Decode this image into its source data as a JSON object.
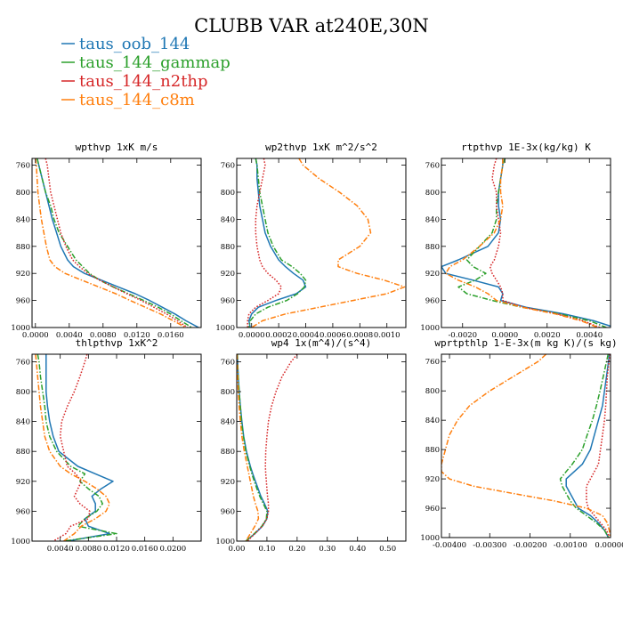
{
  "title": "CLUBB VAR at240E,30N",
  "legend": [
    {
      "name": "taus_oob_144",
      "color": "#1f77b4",
      "dash": "solid"
    },
    {
      "name": "taus_144_gammap",
      "color": "#2ca02c",
      "dash": "dashdot"
    },
    {
      "name": "taus_144_n2thp",
      "color": "#d62728",
      "dash": "dotted"
    },
    {
      "name": "taus_144_c8m",
      "color": "#ff7f0e",
      "dash": "dashdot"
    }
  ],
  "chart_data": [
    {
      "type": "line",
      "title": "wpthvp  1xK m/s",
      "xlim": [
        -0.0004,
        0.0196
      ],
      "ylim": [
        1000,
        750
      ],
      "xticks": [
        0.0,
        0.004,
        0.008,
        0.012,
        0.016
      ],
      "xtick_labels": [
        "0.0000",
        "0.0040",
        "0.0080",
        "0.0120",
        "0.0160"
      ],
      "yticks": [
        760,
        800,
        840,
        880,
        920,
        960,
        1000
      ],
      "y": [
        750,
        760,
        780,
        800,
        820,
        840,
        860,
        880,
        900,
        910,
        920,
        930,
        940,
        950,
        960,
        970,
        980,
        990,
        1000
      ],
      "series": [
        {
          "name": "taus_oob_144",
          "values": [
            0.0002,
            0.0004,
            0.0008,
            0.0012,
            0.0016,
            0.002,
            0.0025,
            0.003,
            0.0038,
            0.0045,
            0.0058,
            0.0078,
            0.0098,
            0.0118,
            0.0135,
            0.015,
            0.0165,
            0.0178,
            0.0193
          ]
        },
        {
          "name": "taus_144_gammap",
          "values": [
            0.0002,
            0.0004,
            0.0008,
            0.0012,
            0.0018,
            0.0022,
            0.0028,
            0.0038,
            0.0048,
            0.0056,
            0.0064,
            0.0076,
            0.0092,
            0.011,
            0.0128,
            0.0145,
            0.016,
            0.0172,
            0.0185
          ]
        },
        {
          "name": "taus_144_n2thp",
          "values": [
            0.0012,
            0.0014,
            0.0016,
            0.0018,
            0.0022,
            0.0026,
            0.003,
            0.0036,
            0.0044,
            0.0052,
            0.0062,
            0.0076,
            0.0092,
            0.0108,
            0.0125,
            0.014,
            0.0155,
            0.0168,
            0.018
          ]
        },
        {
          "name": "taus_144_c8m",
          "values": [
            0.0,
            0.0001,
            0.0002,
            0.0003,
            0.0005,
            0.0007,
            0.001,
            0.0013,
            0.0017,
            0.0023,
            0.0035,
            0.0055,
            0.0075,
            0.0095,
            0.0112,
            0.013,
            0.0148,
            0.0163,
            0.0178
          ]
        }
      ]
    },
    {
      "type": "line",
      "title": "wp2thvp  1xK m^2/s^2",
      "xlim": [
        -0.00011,
        0.00114
      ],
      "ylim": [
        1000,
        750
      ],
      "xticks": [
        0.0,
        0.0002,
        0.0004,
        0.0006,
        0.0008,
        0.001
      ],
      "xtick_labels": [
        "0.0000",
        "0.0002",
        "0.0004",
        "0.0006",
        "0.0008",
        "0.0010"
      ],
      "yticks": [
        760,
        800,
        840,
        880,
        920,
        960,
        1000
      ],
      "y": [
        750,
        760,
        780,
        800,
        820,
        840,
        860,
        880,
        900,
        910,
        920,
        930,
        940,
        950,
        960,
        970,
        980,
        990,
        1000
      ],
      "series": [
        {
          "name": "taus_oob_144",
          "values": [
            3e-05,
            4e-05,
            4e-05,
            5e-05,
            6e-05,
            8e-05,
            0.0001,
            0.00014,
            0.0002,
            0.00025,
            0.00031,
            0.00038,
            0.0004,
            0.00033,
            0.00018,
            5e-05,
            0.0,
            -2e-05,
            -1e-05
          ]
        },
        {
          "name": "taus_144_gammap",
          "values": [
            3e-05,
            4e-05,
            5e-05,
            6e-05,
            8e-05,
            0.0001,
            0.00012,
            0.00016,
            0.00022,
            0.0003,
            0.00036,
            0.0004,
            0.00039,
            0.00034,
            0.00026,
            0.00012,
            3e-05,
            -1e-05,
            -2e-05
          ]
        },
        {
          "name": "taus_144_n2thp",
          "values": [
            9e-05,
            0.0001,
            8e-05,
            6e-05,
            4e-05,
            3e-05,
            3e-05,
            4e-05,
            6e-05,
            8e-05,
            0.00012,
            0.00018,
            0.00022,
            0.0002,
            0.00012,
            3e-05,
            -2e-05,
            -3e-05,
            -3e-05
          ]
        },
        {
          "name": "taus_144_c8m",
          "values": [
            0.00035,
            0.00038,
            0.0005,
            0.00065,
            0.00078,
            0.00086,
            0.00088,
            0.0008,
            0.00064,
            0.00064,
            0.00078,
            0.00098,
            0.00113,
            0.001,
            0.00075,
            0.0005,
            0.00025,
            8e-05,
            0.0
          ]
        }
      ]
    },
    {
      "type": "line",
      "title": "rtpthvp  1E-3x(kg/kg) K",
      "xlim": [
        -0.003,
        0.005
      ],
      "ylim": [
        1000,
        750
      ],
      "xticks": [
        -0.002,
        0.0,
        0.002,
        0.004
      ],
      "xtick_labels": [
        "-0.0020",
        "0.0000",
        "0.0020",
        "0.0040"
      ],
      "yticks": [
        760,
        800,
        840,
        880,
        920,
        960,
        1000
      ],
      "y": [
        750,
        760,
        780,
        800,
        820,
        840,
        860,
        880,
        900,
        910,
        920,
        930,
        940,
        950,
        960,
        970,
        980,
        990,
        1000
      ],
      "series": [
        {
          "name": "taus_oob_144",
          "values": [
            -0.0001,
            -0.0001,
            -0.0002,
            -0.0003,
            -0.0003,
            -0.0002,
            -0.0003,
            -0.0008,
            -0.0022,
            -0.003,
            -0.0028,
            -0.0015,
            -0.0003,
            -0.0001,
            -0.0002,
            0.001,
            0.0028,
            0.0042,
            0.0052
          ]
        },
        {
          "name": "taus_144_gammap",
          "values": [
            0.0,
            -0.0001,
            -0.0002,
            -0.0003,
            -0.0004,
            -0.0004,
            -0.0006,
            -0.0012,
            -0.0018,
            -0.0015,
            -0.0009,
            -0.0014,
            -0.0022,
            -0.0018,
            -0.0006,
            0.0008,
            0.0026,
            0.004,
            0.0048
          ]
        },
        {
          "name": "taus_144_n2thp",
          "values": [
            -0.0004,
            -0.0005,
            -0.0006,
            -0.0004,
            -0.0004,
            -0.0003,
            -0.0002,
            -0.0003,
            -0.0005,
            -0.0007,
            -0.0006,
            -0.0004,
            -0.0002,
            -0.0001,
            -0.0001,
            0.0009,
            0.0025,
            0.0037,
            0.0045
          ]
        },
        {
          "name": "taus_144_c8m",
          "values": [
            -0.0001,
            -0.0001,
            -0.0002,
            -0.0002,
            -0.0001,
            -0.0002,
            -0.0005,
            -0.0012,
            -0.002,
            -0.0026,
            -0.0028,
            -0.0022,
            -0.0014,
            -0.0008,
            -0.0004,
            0.0008,
            0.0024,
            0.0036,
            0.0044
          ]
        }
      ]
    },
    {
      "type": "line",
      "title": "thlpthvp  1xK^2",
      "xlim": [
        0.0,
        0.024
      ],
      "ylim": [
        1000,
        750
      ],
      "xticks": [
        0.004,
        0.008,
        0.012,
        0.016,
        0.02
      ],
      "xtick_labels": [
        "0.0040",
        "0.0080",
        "0.0120",
        "0.0160",
        "0.0200"
      ],
      "yticks": [
        760,
        800,
        840,
        880,
        920,
        960,
        1000
      ],
      "y": [
        750,
        760,
        780,
        800,
        820,
        840,
        860,
        880,
        900,
        910,
        920,
        930,
        940,
        950,
        960,
        970,
        980,
        990,
        1000
      ],
      "series": [
        {
          "name": "taus_oob_144",
          "values": [
            0.002,
            0.002,
            0.002,
            0.002,
            0.0022,
            0.0025,
            0.003,
            0.0038,
            0.0065,
            0.009,
            0.0115,
            0.0098,
            0.0085,
            0.009,
            0.009,
            0.0075,
            0.008,
            0.011,
            0.005
          ]
        },
        {
          "name": "taus_144_gammap",
          "values": [
            0.0008,
            0.001,
            0.0012,
            0.0015,
            0.0018,
            0.002,
            0.0025,
            0.0035,
            0.0055,
            0.0075,
            0.0068,
            0.008,
            0.0095,
            0.01,
            0.0092,
            0.0075,
            0.0065,
            0.012,
            0.0045
          ]
        },
        {
          "name": "taus_144_n2thp",
          "values": [
            0.0078,
            0.0075,
            0.0068,
            0.006,
            0.005,
            0.0042,
            0.004,
            0.0045,
            0.005,
            0.0062,
            0.007,
            0.0065,
            0.006,
            0.0068,
            0.0082,
            0.008,
            0.0055,
            0.0048,
            0.003
          ]
        },
        {
          "name": "taus_144_c8m",
          "values": [
            0.0005,
            0.0006,
            0.0008,
            0.001,
            0.0012,
            0.0015,
            0.0018,
            0.0025,
            0.004,
            0.0055,
            0.0075,
            0.0092,
            0.0105,
            0.011,
            0.0105,
            0.009,
            0.007,
            0.006,
            0.0045
          ]
        }
      ]
    },
    {
      "type": "line",
      "title": "wp4  1x(m^4)/(s^4)",
      "xlim": [
        0.0,
        0.56
      ],
      "ylim": [
        1000,
        750
      ],
      "xticks": [
        0.0,
        0.1,
        0.2,
        0.3,
        0.4,
        0.5
      ],
      "xtick_labels": [
        "0.00",
        "0.10",
        "0.20",
        "0.30",
        "0.40",
        "0.50"
      ],
      "yticks": [
        760,
        800,
        840,
        880,
        920,
        960,
        1000
      ],
      "y": [
        750,
        760,
        780,
        800,
        820,
        840,
        860,
        880,
        900,
        910,
        920,
        930,
        940,
        950,
        960,
        970,
        980,
        990,
        1000
      ],
      "series": [
        {
          "name": "taus_oob_144",
          "values": [
            0.002,
            0.003,
            0.005,
            0.008,
            0.012,
            0.017,
            0.023,
            0.032,
            0.045,
            0.053,
            0.062,
            0.071,
            0.08,
            0.092,
            0.103,
            0.1,
            0.085,
            0.06,
            0.03
          ]
        },
        {
          "name": "taus_144_gammap",
          "values": [
            0.002,
            0.003,
            0.005,
            0.008,
            0.012,
            0.016,
            0.022,
            0.03,
            0.043,
            0.05,
            0.058,
            0.067,
            0.076,
            0.088,
            0.1,
            0.098,
            0.083,
            0.058,
            0.03
          ]
        },
        {
          "name": "taus_144_n2thp",
          "values": [
            0.2,
            0.18,
            0.15,
            0.13,
            0.115,
            0.105,
            0.1,
            0.096,
            0.095,
            0.096,
            0.098,
            0.1,
            0.102,
            0.105,
            0.105,
            0.1,
            0.085,
            0.06,
            0.035
          ]
        },
        {
          "name": "taus_144_c8m",
          "values": [
            0.001,
            0.002,
            0.003,
            0.005,
            0.008,
            0.012,
            0.017,
            0.025,
            0.035,
            0.04,
            0.045,
            0.05,
            0.055,
            0.062,
            0.07,
            0.072,
            0.06,
            0.045,
            0.03
          ]
        }
      ]
    },
    {
      "type": "line",
      "title": "wprtpthlp  1-E-3x(m kg K)/(s kg)",
      "xlim": [
        -0.0042,
        0.0
      ],
      "ylim": [
        1000,
        750
      ],
      "xticks": [
        -0.004,
        -0.003,
        -0.002,
        -0.001,
        0.0
      ],
      "xtick_labels": [
        "-0.00400",
        "-0.00300",
        "-0.00200",
        "-0.00100",
        "0.00000"
      ],
      "yticks": [
        760,
        800,
        840,
        880,
        920,
        960,
        1000
      ],
      "y": [
        750,
        760,
        780,
        800,
        820,
        840,
        860,
        880,
        900,
        910,
        920,
        930,
        940,
        950,
        960,
        970,
        980,
        990,
        1000
      ],
      "series": [
        {
          "name": "taus_oob_144",
          "values": [
            -3e-05,
            -5e-05,
            -0.0001,
            -0.00015,
            -0.0002,
            -0.0003,
            -0.0004,
            -0.0005,
            -0.0007,
            -0.0009,
            -0.0011,
            -0.0011,
            -0.001,
            -0.0009,
            -0.0008,
            -0.0005,
            -0.0003,
            -0.00015,
            -5e-05
          ]
        },
        {
          "name": "taus_144_gammap",
          "values": [
            -6e-05,
            -0.0001,
            -0.00018,
            -0.00026,
            -0.00035,
            -0.00045,
            -0.00058,
            -0.0007,
            -0.00095,
            -0.0011,
            -0.00125,
            -0.0012,
            -0.0011,
            -0.001,
            -0.00085,
            -0.0006,
            -0.00035,
            -0.00015,
            -5e-05
          ]
        },
        {
          "name": "taus_144_n2thp",
          "values": [
            -2e-05,
            -4e-05,
            -8e-05,
            -0.0001,
            -0.00012,
            -0.00015,
            -0.0002,
            -0.00025,
            -0.0003,
            -0.0004,
            -0.0005,
            -0.0006,
            -0.0006,
            -0.0006,
            -0.00055,
            -0.0004,
            -0.00025,
            -0.0001,
            -3e-05
          ]
        },
        {
          "name": "taus_144_c8m",
          "values": [
            -0.0016,
            -0.0018,
            -0.0024,
            -0.003,
            -0.0035,
            -0.0038,
            -0.004,
            -0.0041,
            -0.0042,
            -0.0042,
            -0.004,
            -0.0034,
            -0.0024,
            -0.0014,
            -0.0006,
            -0.0002,
            -8e-05,
            -3e-05,
            -1e-05
          ]
        }
      ]
    }
  ]
}
